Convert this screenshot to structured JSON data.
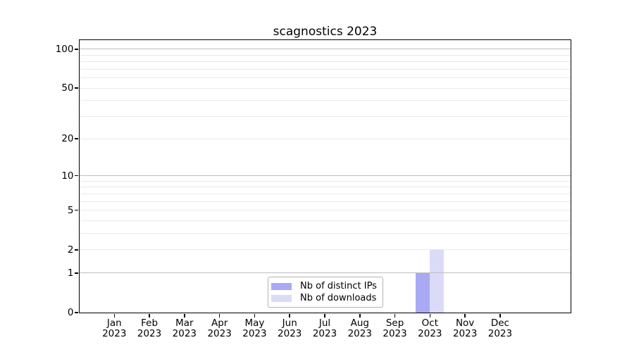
{
  "title": "scagnostics 2023",
  "chart_data": {
    "type": "bar",
    "title": "scagnostics 2023",
    "x_categories": [
      "Jan 2023",
      "Feb 2023",
      "Mar 2023",
      "Apr 2023",
      "May 2023",
      "Jun 2023",
      "Jul 2023",
      "Aug 2023",
      "Sep 2023",
      "Oct 2023",
      "Nov 2023",
      "Dec 2023"
    ],
    "series": [
      {
        "name": "Nb of distinct IPs",
        "color": "#a9a9f4",
        "values": [
          0,
          0,
          0,
          0,
          0,
          0,
          0,
          0,
          0,
          1,
          0,
          0
        ]
      },
      {
        "name": "Nb of downloads",
        "color": "#dbdbf8",
        "values": [
          0,
          0,
          0,
          0,
          0,
          0,
          0,
          0,
          0,
          2,
          0,
          0
        ]
      }
    ],
    "y_axis": {
      "scale": "log1p",
      "labeled_ticks": [
        0,
        1,
        2,
        5,
        10,
        20,
        50,
        100
      ],
      "major_grid_values": [
        1,
        10,
        100
      ],
      "minor_grid_values": [
        2,
        3,
        4,
        5,
        6,
        7,
        8,
        9,
        20,
        30,
        40,
        50,
        60,
        70,
        80,
        90
      ],
      "range": [
        0,
        118
      ]
    },
    "x_axis": {
      "xlim": [
        -1,
        12
      ]
    },
    "grid": {
      "horizontal": true,
      "major_color": "#bdbdbd",
      "minor_color": "#e9e9e9"
    },
    "bar_width_fraction": 0.4,
    "legend": {
      "position": "lower center",
      "entries": [
        "Nb of distinct IPs",
        "Nb of downloads"
      ]
    }
  }
}
